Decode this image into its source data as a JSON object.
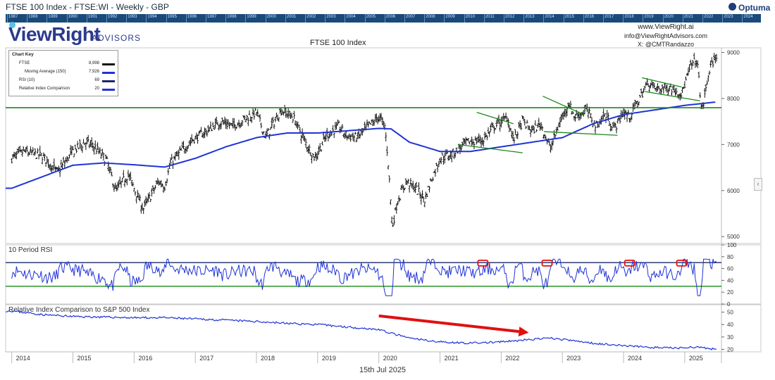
{
  "window": {
    "title": "FTSE 100 Index - FTSE:WI - Weekly - GBP",
    "app_logo": "Optuma"
  },
  "timeline_years": [
    "1987",
    "1988",
    "1989",
    "1990",
    "1991",
    "1992",
    "1993",
    "1994",
    "1995",
    "1996",
    "1997",
    "1998",
    "1999",
    "2000",
    "2001",
    "2002",
    "2003",
    "2004",
    "2005",
    "2006",
    "2007",
    "2008",
    "2009",
    "2010",
    "2011",
    "2012",
    "2013",
    "2014",
    "2015",
    "2016",
    "2017",
    "2018",
    "2019",
    "2020",
    "2021",
    "2022",
    "2023",
    "2024",
    "2025"
  ],
  "brand": {
    "name_part1": "ViewRight",
    "name_part2": "ADVISORS"
  },
  "contact": {
    "website": "www.ViewRight.ai",
    "email": "info@ViewRightAdvisors.com",
    "twitter": "X: @CMTRandazzo"
  },
  "chart_key": {
    "title": "Chart Key",
    "items": [
      {
        "name": "FTSE",
        "value": "8,998",
        "color": "#111111"
      },
      {
        "name": "Moving Average (150)",
        "value": "7,926",
        "color": "#1f33d6"
      },
      {
        "name": "RSI (10)",
        "value": "69",
        "color": "#1a2a6a"
      },
      {
        "name": "Relative Index Comparison",
        "value": "20",
        "color": "#1f33d6"
      }
    ]
  },
  "footer": {
    "date": "15th Jul 2025"
  },
  "colors": {
    "price": "#111111",
    "ma": "#1f33d6",
    "rsi": "#1f33d6",
    "green": "#1a8a1a",
    "red": "#e01010",
    "navy": "#1a2a6a"
  },
  "chart_data": [
    {
      "type": "line",
      "title": "FTSE 100 Index",
      "x_ticks": [
        "2014",
        "2015",
        "2016",
        "2017",
        "2018",
        "2019",
        "2020",
        "2021",
        "2022",
        "2023",
        "2024",
        "2025"
      ],
      "ylim": [
        4850,
        9100
      ],
      "y_ticks": [
        5000,
        6000,
        7000,
        8000,
        9000
      ],
      "price_anchors": [
        [
          2014.0,
          6700
        ],
        [
          2014.2,
          6850
        ],
        [
          2014.5,
          6750
        ],
        [
          2014.75,
          6400
        ],
        [
          2015.0,
          6850
        ],
        [
          2015.2,
          7050
        ],
        [
          2015.35,
          6950
        ],
        [
          2015.55,
          6650
        ],
        [
          2015.7,
          6000
        ],
        [
          2015.9,
          6350
        ],
        [
          2016.05,
          5900
        ],
        [
          2016.15,
          5600
        ],
        [
          2016.4,
          6200
        ],
        [
          2016.5,
          6100
        ],
        [
          2016.6,
          6600
        ],
        [
          2016.8,
          6900
        ],
        [
          2016.95,
          7100
        ],
        [
          2017.2,
          7300
        ],
        [
          2017.4,
          7500
        ],
        [
          2017.6,
          7400
        ],
        [
          2017.8,
          7550
        ],
        [
          2018.0,
          7700
        ],
        [
          2018.15,
          7150
        ],
        [
          2018.4,
          7750
        ],
        [
          2018.6,
          7600
        ],
        [
          2018.8,
          7050
        ],
        [
          2018.95,
          6700
        ],
        [
          2019.15,
          7200
        ],
        [
          2019.35,
          7400
        ],
        [
          2019.45,
          7200
        ],
        [
          2019.65,
          7150
        ],
        [
          2019.8,
          7350
        ],
        [
          2020.0,
          7600
        ],
        [
          2020.1,
          7400
        ],
        [
          2020.16,
          6500
        ],
        [
          2020.22,
          5200
        ],
        [
          2020.3,
          5750
        ],
        [
          2020.45,
          6200
        ],
        [
          2020.6,
          6050
        ],
        [
          2020.75,
          5800
        ],
        [
          2020.85,
          6200
        ],
        [
          2021.0,
          6700
        ],
        [
          2021.2,
          6800
        ],
        [
          2021.45,
          7050
        ],
        [
          2021.7,
          7100
        ],
        [
          2021.9,
          7400
        ],
        [
          2022.1,
          7600
        ],
        [
          2022.2,
          7100
        ],
        [
          2022.35,
          7500
        ],
        [
          2022.5,
          7300
        ],
        [
          2022.65,
          7450
        ],
        [
          2022.8,
          6900
        ],
        [
          2022.95,
          7450
        ],
        [
          2023.1,
          7900
        ],
        [
          2023.2,
          7600
        ],
        [
          2023.4,
          7750
        ],
        [
          2023.55,
          7400
        ],
        [
          2023.7,
          7650
        ],
        [
          2023.85,
          7350
        ],
        [
          2024.0,
          7700
        ],
        [
          2024.1,
          7600
        ],
        [
          2024.3,
          8100
        ],
        [
          2024.4,
          8350
        ],
        [
          2024.55,
          8200
        ],
        [
          2024.75,
          8250
        ],
        [
          2024.95,
          8100
        ],
        [
          2025.1,
          8700
        ],
        [
          2025.2,
          8850
        ],
        [
          2025.28,
          7700
        ],
        [
          2025.4,
          8600
        ],
        [
          2025.53,
          8998
        ]
      ],
      "ma_anchors": [
        [
          2014.0,
          6050
        ],
        [
          2014.5,
          6300
        ],
        [
          2015.0,
          6550
        ],
        [
          2015.5,
          6600
        ],
        [
          2016.0,
          6560
        ],
        [
          2016.5,
          6510
        ],
        [
          2017.0,
          6700
        ],
        [
          2017.5,
          6950
        ],
        [
          2018.0,
          7150
        ],
        [
          2018.5,
          7250
        ],
        [
          2019.0,
          7250
        ],
        [
          2019.5,
          7300
        ],
        [
          2020.0,
          7350
        ],
        [
          2020.2,
          7340
        ],
        [
          2020.5,
          7050
        ],
        [
          2021.0,
          6850
        ],
        [
          2021.5,
          6850
        ],
        [
          2022.0,
          6950
        ],
        [
          2022.5,
          7050
        ],
        [
          2023.0,
          7150
        ],
        [
          2023.5,
          7450
        ],
        [
          2024.0,
          7650
        ],
        [
          2024.5,
          7750
        ],
        [
          2025.0,
          7850
        ],
        [
          2025.53,
          7926
        ]
      ],
      "support_line": 7800,
      "series": [
        {
          "name": "FTSE",
          "last": 8998
        },
        {
          "name": "Moving Average (150)",
          "last": 7926
        }
      ],
      "trend_channels": [
        {
          "upper": [
            [
              2021.6,
              7700
            ],
            [
              2022.2,
              7450
            ]
          ],
          "lower": [
            [
              2021.3,
              7000
            ],
            [
              2022.35,
              6820
            ]
          ]
        },
        {
          "upper": [
            [
              2022.68,
              8050
            ],
            [
              2023.35,
              7650
            ]
          ],
          "lower": [
            [
              2022.7,
              7280
            ],
            [
              2023.9,
              7200
            ]
          ]
        },
        {
          "upper": [
            [
              2024.3,
              8450
            ],
            [
              2024.95,
              8250
            ]
          ],
          "lower": [
            [
              2024.35,
              8150
            ],
            [
              2025.25,
              7950
            ]
          ]
        }
      ]
    },
    {
      "type": "line",
      "title": "10 Period RSI",
      "ylim": [
        0,
        100
      ],
      "y_ticks": [
        0,
        20,
        40,
        60,
        80,
        100
      ],
      "levels": [
        70,
        30
      ],
      "last": 69,
      "highlight_dates": [
        2021.7,
        2022.75,
        2024.1,
        2024.95
      ]
    },
    {
      "type": "line",
      "title": "Relative Index Comparison to S&P 500 Index",
      "ylim": [
        18,
        56
      ],
      "y_ticks": [
        20,
        30,
        40,
        50
      ],
      "anchors": [
        [
          2014.0,
          51
        ],
        [
          2014.5,
          48
        ],
        [
          2015.0,
          46.5
        ],
        [
          2015.5,
          46
        ],
        [
          2016.0,
          45.5
        ],
        [
          2016.5,
          45.5
        ],
        [
          2017.0,
          44.5
        ],
        [
          2017.5,
          43.5
        ],
        [
          2018.0,
          42.5
        ],
        [
          2018.5,
          41
        ],
        [
          2019.0,
          40
        ],
        [
          2019.5,
          38
        ],
        [
          2020.0,
          36
        ],
        [
          2020.2,
          33
        ],
        [
          2020.5,
          29
        ],
        [
          2021.0,
          26
        ],
        [
          2021.5,
          25
        ],
        [
          2022.0,
          26
        ],
        [
          2022.5,
          28
        ],
        [
          2022.8,
          29
        ],
        [
          2023.0,
          28
        ],
        [
          2023.5,
          25
        ],
        [
          2024.0,
          23
        ],
        [
          2024.5,
          21.5
        ],
        [
          2024.9,
          21
        ],
        [
          2025.1,
          22
        ],
        [
          2025.53,
          20
        ]
      ],
      "last": 20,
      "arrow": {
        "from": [
          2020.0,
          47
        ],
        "to": [
          2022.45,
          33.5
        ]
      }
    }
  ]
}
